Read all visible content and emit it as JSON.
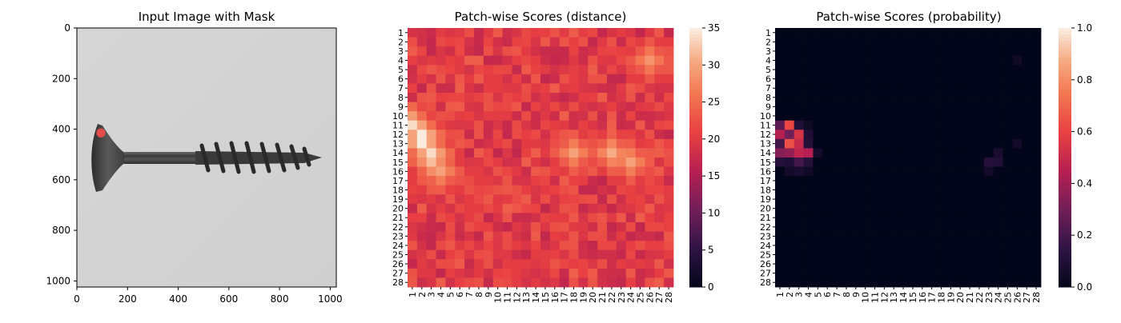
{
  "chart_data": [
    {
      "type": "image",
      "title": "Input Image with Mask",
      "xticks": [
        0,
        200,
        400,
        600,
        800,
        1000
      ],
      "yticks": [
        0,
        200,
        400,
        600,
        800,
        1000
      ],
      "xlim": [
        0,
        1024
      ],
      "ylim": [
        1024,
        0
      ],
      "mask": {
        "x": 95,
        "y": 415,
        "r": 18,
        "color": "#ff4d4d"
      }
    },
    {
      "type": "heatmap",
      "title": "Patch-wise Scores (distance)",
      "rows": 28,
      "cols": 28,
      "row_labels": [
        "1",
        "2",
        "3",
        "4",
        "5",
        "6",
        "7",
        "8",
        "9",
        "10",
        "11",
        "12",
        "13",
        "14",
        "15",
        "16",
        "17",
        "18",
        "19",
        "20",
        "21",
        "22",
        "23",
        "24",
        "25",
        "26",
        "27",
        "28"
      ],
      "col_labels": [
        "1",
        "2",
        "3",
        "4",
        "5",
        "6",
        "7",
        "8",
        "9",
        "10",
        "11",
        "12",
        "13",
        "14",
        "15",
        "16",
        "17",
        "18",
        "19",
        "20",
        "21",
        "22",
        "23",
        "24",
        "25",
        "26",
        "27",
        "28"
      ],
      "colorbar": {
        "min": 0,
        "max": 35,
        "ticks": [
          0,
          5,
          10,
          15,
          20,
          25,
          30,
          35
        ]
      },
      "base_value": 20.5,
      "hotspots": [
        {
          "row": 11,
          "col": 1,
          "value": 34
        },
        {
          "row": 12,
          "col": 2,
          "value": 35
        },
        {
          "row": 13,
          "col": 2,
          "value": 35
        },
        {
          "row": 14,
          "col": 3,
          "value": 34
        },
        {
          "row": 15,
          "col": 3,
          "value": 32
        },
        {
          "row": 16,
          "col": 4,
          "value": 30
        },
        {
          "row": 14,
          "col": 18,
          "value": 30
        },
        {
          "row": 14,
          "col": 22,
          "value": 31
        },
        {
          "row": 15,
          "col": 24,
          "value": 30
        },
        {
          "row": 4,
          "col": 26,
          "value": 29
        },
        {
          "row": 8,
          "col": 8,
          "value": 17
        },
        {
          "row": 18,
          "col": 9,
          "value": 16
        },
        {
          "row": 19,
          "col": 6,
          "value": 16
        },
        {
          "row": 28,
          "col": 14,
          "value": 18
        }
      ]
    },
    {
      "type": "heatmap",
      "title": "Patch-wise Scores (probability)",
      "rows": 28,
      "cols": 28,
      "row_labels": [
        "1",
        "2",
        "3",
        "4",
        "5",
        "6",
        "7",
        "8",
        "9",
        "10",
        "11",
        "12",
        "13",
        "14",
        "15",
        "16",
        "17",
        "18",
        "19",
        "20",
        "21",
        "22",
        "23",
        "24",
        "25",
        "26",
        "27",
        "28"
      ],
      "col_labels": [
        "1",
        "2",
        "3",
        "4",
        "5",
        "6",
        "7",
        "8",
        "9",
        "10",
        "11",
        "12",
        "13",
        "14",
        "15",
        "16",
        "17",
        "18",
        "19",
        "20",
        "21",
        "22",
        "23",
        "24",
        "25",
        "26",
        "27",
        "28"
      ],
      "colorbar": {
        "min": 0.0,
        "max": 1.0,
        "ticks": [
          0.0,
          0.2,
          0.4,
          0.6,
          0.8,
          1.0
        ]
      },
      "base_value": 0.0,
      "hotspots": [
        {
          "row": 11,
          "col": 1,
          "value": 0.25
        },
        {
          "row": 11,
          "col": 2,
          "value": 0.62
        },
        {
          "row": 11,
          "col": 3,
          "value": 0.1
        },
        {
          "row": 11,
          "col": 4,
          "value": 0.05
        },
        {
          "row": 12,
          "col": 1,
          "value": 0.45
        },
        {
          "row": 12,
          "col": 2,
          "value": 0.3
        },
        {
          "row": 12,
          "col": 3,
          "value": 0.55
        },
        {
          "row": 12,
          "col": 4,
          "value": 0.1
        },
        {
          "row": 13,
          "col": 1,
          "value": 0.2
        },
        {
          "row": 13,
          "col": 2,
          "value": 0.65
        },
        {
          "row": 13,
          "col": 3,
          "value": 0.5
        },
        {
          "row": 13,
          "col": 4,
          "value": 0.12
        },
        {
          "row": 14,
          "col": 1,
          "value": 0.35
        },
        {
          "row": 14,
          "col": 2,
          "value": 0.38
        },
        {
          "row": 14,
          "col": 3,
          "value": 0.48
        },
        {
          "row": 14,
          "col": 4,
          "value": 0.45
        },
        {
          "row": 14,
          "col": 5,
          "value": 0.06
        },
        {
          "row": 15,
          "col": 1,
          "value": 0.12
        },
        {
          "row": 15,
          "col": 2,
          "value": 0.1
        },
        {
          "row": 15,
          "col": 3,
          "value": 0.2
        },
        {
          "row": 15,
          "col": 4,
          "value": 0.12
        },
        {
          "row": 16,
          "col": 2,
          "value": 0.06
        },
        {
          "row": 16,
          "col": 3,
          "value": 0.08
        },
        {
          "row": 16,
          "col": 4,
          "value": 0.05
        },
        {
          "row": 14,
          "col": 24,
          "value": 0.08
        },
        {
          "row": 15,
          "col": 23,
          "value": 0.12
        },
        {
          "row": 15,
          "col": 24,
          "value": 0.1
        },
        {
          "row": 16,
          "col": 23,
          "value": 0.06
        },
        {
          "row": 13,
          "col": 26,
          "value": 0.06
        },
        {
          "row": 4,
          "col": 26,
          "value": 0.05
        }
      ]
    }
  ]
}
